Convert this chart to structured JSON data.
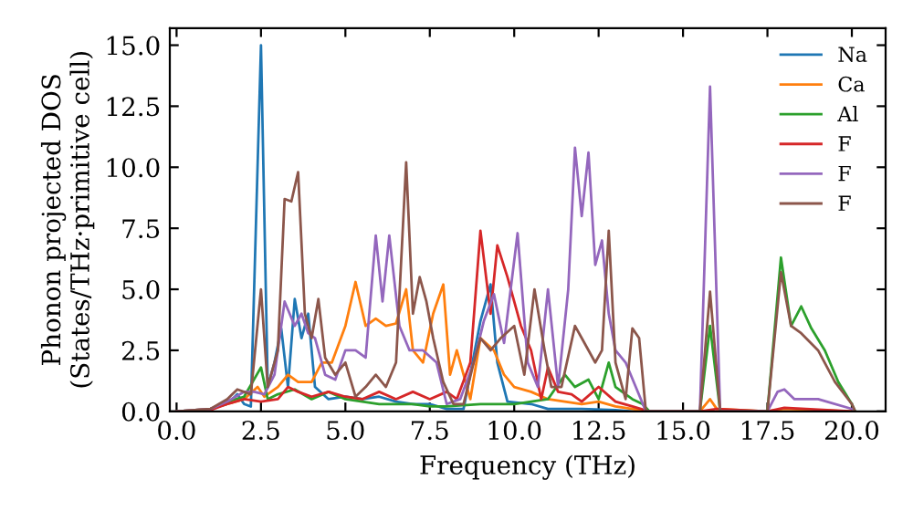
{
  "chart_data": {
    "type": "line",
    "xlabel": "Frequency (THz)",
    "ylabel": "Phonon projected DOS\n(States/THz·primitive cell)",
    "xlim": [
      -0.2,
      21.0
    ],
    "ylim": [
      0,
      15.7
    ],
    "xticks": [
      {
        "value": 0,
        "label": "0.0"
      },
      {
        "value": 2.5,
        "label": "2.5"
      },
      {
        "value": 5,
        "label": "5.0"
      },
      {
        "value": 7.5,
        "label": "7.5"
      },
      {
        "value": 10,
        "label": "10.0"
      },
      {
        "value": 12.5,
        "label": "12.5"
      },
      {
        "value": 15,
        "label": "15.0"
      },
      {
        "value": 17.5,
        "label": "17.5"
      },
      {
        "value": 20,
        "label": "20.0"
      }
    ],
    "yticks": [
      {
        "value": 0,
        "label": "0.0"
      },
      {
        "value": 2.5,
        "label": "2.5"
      },
      {
        "value": 5,
        "label": "5.0"
      },
      {
        "value": 7.5,
        "label": "7.5"
      },
      {
        "value": 10,
        "label": "10.0"
      },
      {
        "value": 12.5,
        "label": "12.5"
      },
      {
        "value": 15,
        "label": "15.0"
      }
    ],
    "legend": "top right",
    "grid": false,
    "series": [
      {
        "name": "Na",
        "color": "#1f77b4",
        "x": [
          0,
          1,
          1.5,
          1.8,
          2,
          2.2,
          2.5,
          2.7,
          2.9,
          3.1,
          3.3,
          3.5,
          3.7,
          3.9,
          4.1,
          4.5,
          5,
          5.5,
          6,
          6.5,
          7,
          7.5,
          8,
          8.5,
          9,
          9.3,
          9.5,
          9.8,
          10.5,
          11,
          12,
          13,
          13.5,
          14
        ],
        "values": [
          0,
          0.1,
          0.3,
          0.7,
          0.3,
          0.2,
          15.0,
          1.0,
          2.0,
          3.4,
          1.0,
          4.6,
          3.0,
          4.0,
          1.0,
          0.5,
          0.6,
          0.5,
          0.6,
          0.4,
          0.3,
          0.3,
          0.1,
          0.1,
          3.7,
          5.2,
          2.0,
          0.4,
          0.3,
          0.1,
          0.1,
          0.05,
          0,
          0
        ]
      },
      {
        "name": "Ca",
        "color": "#ff7f0e",
        "x": [
          0,
          1,
          1.5,
          2,
          2.4,
          2.6,
          3,
          3.3,
          3.6,
          4,
          4.3,
          4.6,
          5,
          5.3,
          5.6,
          5.9,
          6.2,
          6.5,
          6.8,
          7,
          7.3,
          7.6,
          7.9,
          8.1,
          8.3,
          8.5,
          8.7,
          9,
          9.4,
          9.7,
          10,
          10.5,
          11,
          11.5,
          12,
          12.5,
          13,
          13.5,
          14,
          15.5,
          15.8,
          16,
          17.5,
          18,
          20
        ],
        "values": [
          0,
          0.1,
          0.3,
          0.5,
          1.0,
          0.6,
          1.0,
          1.5,
          1.2,
          1.2,
          2.0,
          2.0,
          3.5,
          5.3,
          3.5,
          3.8,
          3.5,
          3.6,
          5.0,
          2.5,
          2.0,
          4.0,
          5.2,
          1.5,
          2.5,
          1.5,
          0.5,
          3.0,
          2.5,
          1.5,
          1.0,
          0.8,
          0.5,
          0.4,
          0.3,
          0.4,
          0.2,
          0.1,
          0,
          0,
          0.5,
          0.1,
          0,
          0.1,
          0
        ]
      },
      {
        "name": "Al",
        "color": "#2ca02c",
        "x": [
          0,
          1,
          1.5,
          2,
          2.5,
          2.7,
          3,
          3.5,
          4,
          4.5,
          5,
          5.5,
          6,
          7,
          7.5,
          8,
          9,
          10,
          11,
          11.5,
          11.8,
          12.2,
          12.5,
          12.8,
          13,
          13.5,
          13.8,
          14,
          15.5,
          15.8,
          16.1,
          17.5,
          17.9,
          18.2,
          18.5,
          18.8,
          19.2,
          19.6,
          20,
          20.1
        ],
        "values": [
          0,
          0.05,
          0.4,
          0.6,
          1.8,
          0.5,
          0.7,
          0.9,
          0.5,
          0.8,
          0.5,
          0.4,
          0.3,
          0.3,
          0.2,
          0.2,
          0.3,
          0.3,
          0.5,
          1.5,
          1.0,
          1.3,
          0.5,
          2.0,
          1.0,
          0.5,
          0.3,
          0,
          0,
          3.5,
          0,
          0,
          6.3,
          3.5,
          4.3,
          3.4,
          2.5,
          1.2,
          0.3,
          0
        ]
      },
      {
        "name": "F",
        "color": "#d62728",
        "x": [
          0,
          1,
          1.5,
          2,
          2.5,
          3,
          3.3,
          3.6,
          4,
          4.5,
          5,
          5.5,
          6,
          6.5,
          7,
          7.5,
          8,
          8.3,
          8.7,
          9,
          9.3,
          9.5,
          9.8,
          10.2,
          10.5,
          10.8,
          11,
          11.3,
          11.7,
          12,
          12.5,
          13,
          13.5,
          14,
          15.5,
          16,
          17.5,
          18,
          20
        ],
        "values": [
          0,
          0.05,
          0.3,
          0.5,
          0.4,
          0.5,
          1.0,
          0.8,
          0.6,
          0.8,
          0.6,
          0.5,
          0.8,
          0.5,
          0.8,
          0.5,
          0.8,
          0.5,
          2.0,
          7.4,
          4.0,
          6.8,
          5.5,
          3.5,
          2.5,
          0.5,
          1.8,
          0.8,
          0.7,
          0.4,
          1.0,
          0.4,
          0.2,
          0,
          0,
          0.1,
          0,
          0.15,
          0
        ]
      },
      {
        "name": "F",
        "color": "#9467bd",
        "x": [
          0,
          1,
          1.5,
          2,
          2.3,
          2.6,
          2.9,
          3.2,
          3.5,
          3.7,
          3.9,
          4.1,
          4.4,
          4.7,
          5,
          5.3,
          5.6,
          5.9,
          6.1,
          6.3,
          6.6,
          6.9,
          7.3,
          7.7,
          8,
          8.4,
          8.8,
          9.1,
          9.4,
          9.7,
          10.1,
          10.4,
          10.7,
          11,
          11.3,
          11.6,
          11.8,
          12,
          12.2,
          12.4,
          12.6,
          12.8,
          13,
          13.3,
          13.6,
          13.9,
          15.5,
          15.8,
          16.1,
          17.5,
          17.8,
          18,
          18.3,
          19,
          20
        ],
        "values": [
          0,
          0.1,
          0.4,
          0.8,
          0.8,
          0.7,
          1.5,
          4.5,
          3.5,
          4.0,
          3.2,
          3.0,
          1.5,
          1.3,
          2.5,
          2.5,
          2.2,
          7.2,
          4.5,
          7.2,
          3.5,
          2.5,
          2.5,
          2.0,
          0.3,
          0.5,
          2.0,
          3.7,
          4.8,
          2.8,
          7.3,
          2.0,
          1.0,
          5.0,
          1.0,
          5.0,
          10.8,
          8.0,
          10.6,
          6.0,
          7.0,
          4.0,
          2.5,
          2.0,
          1.0,
          0,
          0,
          13.3,
          0,
          0,
          0.8,
          0.9,
          0.5,
          0.5,
          0.1
        ]
      },
      {
        "name": "F",
        "color": "#8c564b",
        "x": [
          0,
          1,
          1.5,
          1.8,
          2.2,
          2.5,
          2.7,
          3,
          3.2,
          3.4,
          3.6,
          3.8,
          4,
          4.2,
          4.4,
          4.7,
          5,
          5.3,
          5.6,
          5.9,
          6.2,
          6.5,
          6.8,
          7,
          7.2,
          7.4,
          7.6,
          7.9,
          8.2,
          8.5,
          8.8,
          9,
          9.3,
          9.6,
          10,
          10.3,
          10.6,
          10.9,
          11.1,
          11.4,
          11.8,
          12,
          12.4,
          12.6,
          12.8,
          13,
          13.3,
          13.5,
          13.7,
          13.9,
          15.5,
          15.8,
          16.1,
          17.5,
          17.9,
          18.2,
          18.5,
          19,
          19.5,
          20,
          20.1
        ],
        "values": [
          0,
          0.1,
          0.5,
          0.9,
          0.7,
          5.0,
          1.0,
          2.5,
          8.7,
          8.6,
          9.8,
          4.0,
          3.0,
          4.6,
          2.2,
          1.5,
          2.0,
          0.6,
          1.0,
          1.5,
          1.0,
          2.0,
          10.2,
          4.0,
          5.5,
          4.5,
          3.0,
          1.2,
          0.3,
          0.3,
          2.0,
          3.0,
          2.5,
          3.0,
          3.5,
          1.5,
          5.0,
          2.5,
          1.0,
          1.0,
          3.5,
          3.0,
          2.0,
          2.5,
          7.4,
          2.0,
          0.5,
          3.4,
          3.0,
          0,
          0,
          4.9,
          0,
          0,
          5.7,
          3.5,
          3.2,
          2.5,
          1.2,
          0.3,
          0
        ]
      }
    ]
  }
}
